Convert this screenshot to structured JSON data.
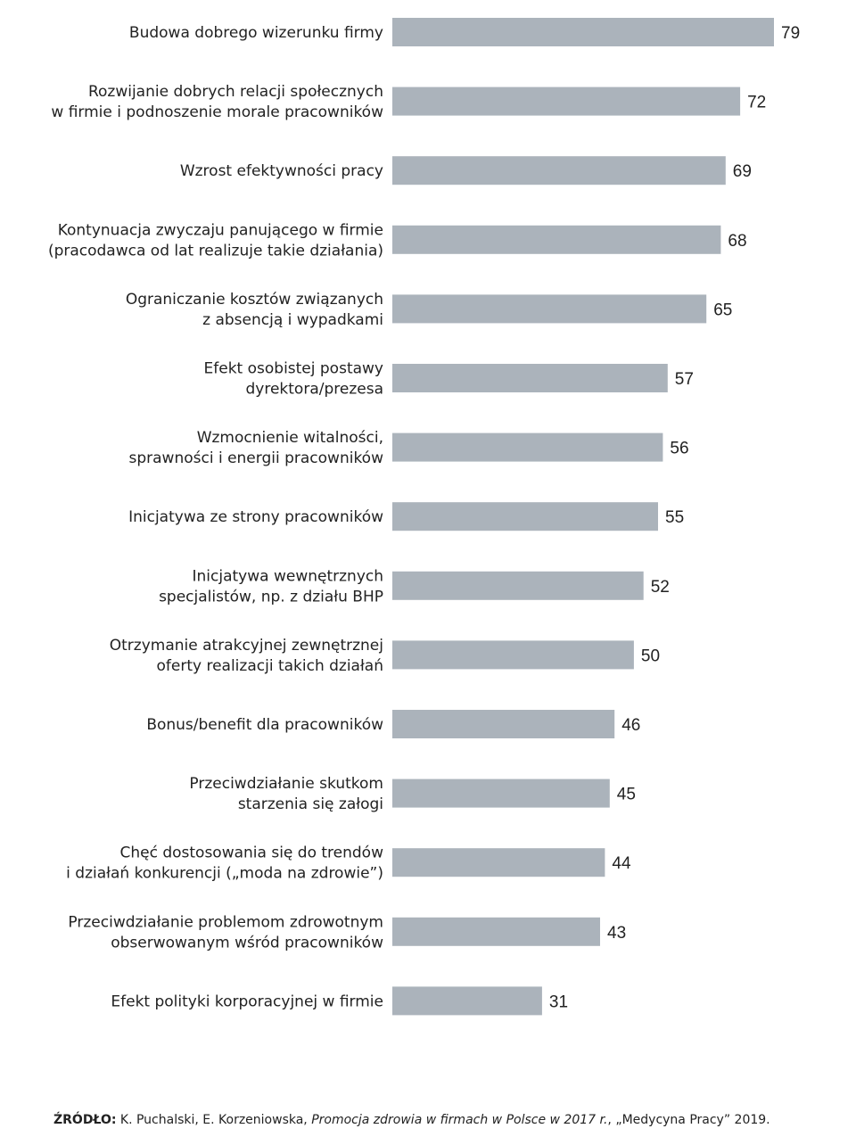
{
  "chart_data": {
    "type": "bar",
    "orientation": "horizontal",
    "categories": [
      [
        "Budowa dobrego wizerunku firmy"
      ],
      [
        "Rozwijanie dobrych relacji społecznych",
        "w firmie i podnoszenie morale pracowników"
      ],
      [
        "Wzrost efektywności pracy"
      ],
      [
        "Kontynuacja zwyczaju panującego w firmie",
        "(pracodawca od lat realizuje takie działania)"
      ],
      [
        "Ograniczanie kosztów związanych",
        "z absencją i wypadkami"
      ],
      [
        "Efekt osobistej postawy",
        "dyrektora/prezesa"
      ],
      [
        "Wzmocnienie witalności,",
        "sprawności i energii pracowników"
      ],
      [
        "Inicjatywa ze strony pracowników"
      ],
      [
        "Inicjatywa wewnętrznych",
        "specjalistów, np. z działu BHP"
      ],
      [
        "Otrzymanie atrakcyjnej zewnętrznej",
        "oferty realizacji takich działań"
      ],
      [
        "Bonus/benefit dla pracowników"
      ],
      [
        "Przeciwdziałanie skutkom",
        "starzenia się załogi"
      ],
      [
        "Chęć dostosowania się do trendów",
        "i działań konkurencji („moda na zdrowie”)"
      ],
      [
        "Przeciwdziałanie problemom zdrowotnym",
        "obserwowanym wśród pracowników"
      ],
      [
        "Efekt polityki korporacyjnej w firmie"
      ]
    ],
    "values": [
      79,
      72,
      69,
      68,
      65,
      57,
      56,
      55,
      52,
      50,
      46,
      45,
      44,
      43,
      31
    ],
    "value_labels": [
      "79",
      "72",
      "69",
      "68",
      "65",
      "57",
      "56",
      "55",
      "52",
      "50",
      "46",
      "45",
      "44",
      "43",
      "31"
    ],
    "xlim": [
      0,
      79
    ],
    "bar_color": "#abb3bb",
    "grid": false,
    "title": "",
    "xlabel": "",
    "ylabel": ""
  },
  "source": {
    "prefix": "ŹRÓDŁO:",
    "authors": " K. Puchalski, E. Korzeniowska, ",
    "title": "Promocja zdrowia w firmach w Polsce w 2017 r.",
    "rest": ", „Medycyna Pracy” 2019."
  }
}
